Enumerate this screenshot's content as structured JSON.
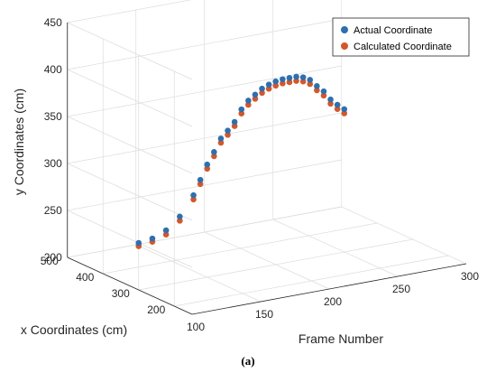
{
  "caption": "(a)",
  "chart_data": {
    "type": "scatter",
    "projection": "3d",
    "xlabel": "Frame Number",
    "ylabel": "x Coordinates (cm)",
    "zlabel": "y Coordinates (cm)",
    "xlim": [
      100,
      300
    ],
    "ylim": [
      150,
      500
    ],
    "zlim": [
      200,
      450
    ],
    "xticks": [
      "100",
      "150",
      "200",
      "250",
      "300"
    ],
    "yticks": [
      "200",
      "300",
      "400",
      "500"
    ],
    "zticks": [
      "200",
      "250",
      "300",
      "350",
      "400",
      "450"
    ],
    "grid": true,
    "legend_position": "top-right",
    "colors": {
      "actual": "#2f6fad",
      "calculated": "#d4572a"
    },
    "series": [
      {
        "name": "Actual Coordinate",
        "x": [
          100,
          110,
          120,
          130,
          140,
          145,
          150,
          155,
          160,
          165,
          170,
          175,
          180,
          185,
          190,
          195,
          200,
          205,
          210,
          215,
          220,
          225,
          230,
          235,
          240,
          245,
          250
        ],
        "y": [
          300,
          300,
          300,
          300,
          300,
          300,
          300,
          300,
          300,
          300,
          300,
          300,
          300,
          300,
          300,
          300,
          300,
          300,
          300,
          300,
          300,
          300,
          300,
          300,
          300,
          300,
          300
        ],
        "z": [
          250,
          252,
          258,
          270,
          290,
          305,
          320,
          332,
          345,
          352,
          360,
          372,
          380,
          385,
          390,
          393,
          395,
          396,
          396,
          396,
          394,
          390,
          382,
          375,
          365,
          358,
          352
        ]
      },
      {
        "name": "Calculated Coordinate",
        "x": [
          100,
          110,
          120,
          130,
          140,
          145,
          150,
          155,
          160,
          165,
          170,
          175,
          180,
          185,
          190,
          195,
          200,
          205,
          210,
          215,
          220,
          225,
          230,
          235,
          240,
          245,
          250
        ],
        "y": [
          300,
          300,
          300,
          300,
          300,
          300,
          300,
          300,
          300,
          300,
          300,
          300,
          300,
          300,
          300,
          300,
          300,
          300,
          300,
          300,
          300,
          300,
          300,
          300,
          300,
          300,
          300
        ],
        "z": [
          249,
          251,
          256,
          268,
          288,
          303,
          318,
          330,
          343,
          350,
          358,
          370,
          378,
          383,
          388,
          391,
          393,
          394,
          394,
          394,
          392,
          388,
          380,
          373,
          363,
          356,
          350
        ]
      }
    ]
  }
}
